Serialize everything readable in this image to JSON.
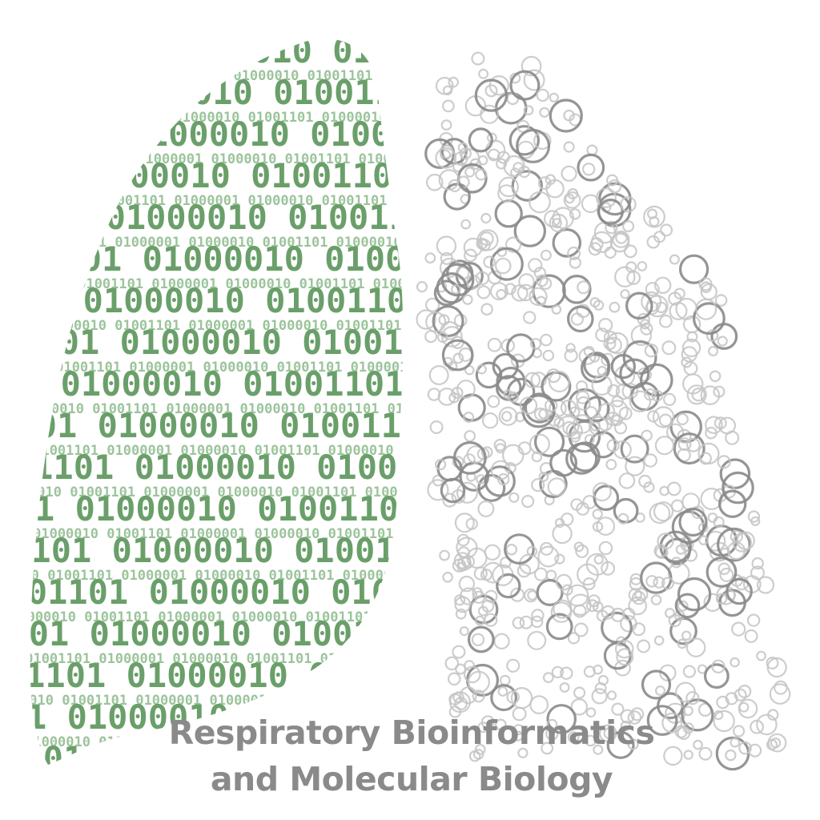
{
  "title": {
    "line1": "Respiratory Bioinformatics",
    "line2": "and Molecular Biology"
  },
  "art": {
    "binary_digits": "01001101 01000010 01001101 01000001 01000010 01001101 01000010 01001101 01000010",
    "colors": {
      "binary_dark": "#6a9f6a",
      "binary_light": "#9cc49c",
      "bubble_dark": "#8a8a8a",
      "bubble_light": "#c4c4c4",
      "title_text": "#8a8a8a"
    },
    "left_lung_icon": "binary-lung-icon",
    "right_lung_icon": "bubble-lung-icon"
  }
}
